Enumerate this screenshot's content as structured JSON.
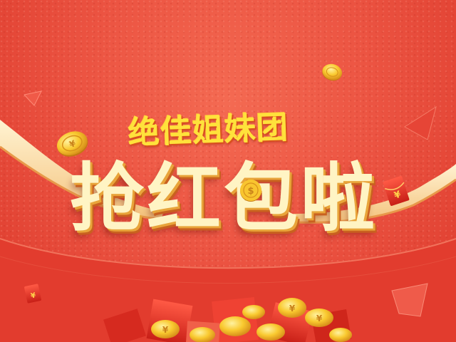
{
  "banner": {
    "subtitle": "绝佳姐妹团",
    "headline": "抢红包啦"
  },
  "colors": {
    "background": "#ec5442",
    "ribbon": "#fbe1a8",
    "title_yellow": "#ffe23b",
    "headline_cream": "#fff4c4",
    "coin_gold": "#f7c531"
  },
  "icons": [
    "gold-coin-icon",
    "red-envelope-icon",
    "yen-symbol-icon",
    "dollar-symbol-icon"
  ]
}
